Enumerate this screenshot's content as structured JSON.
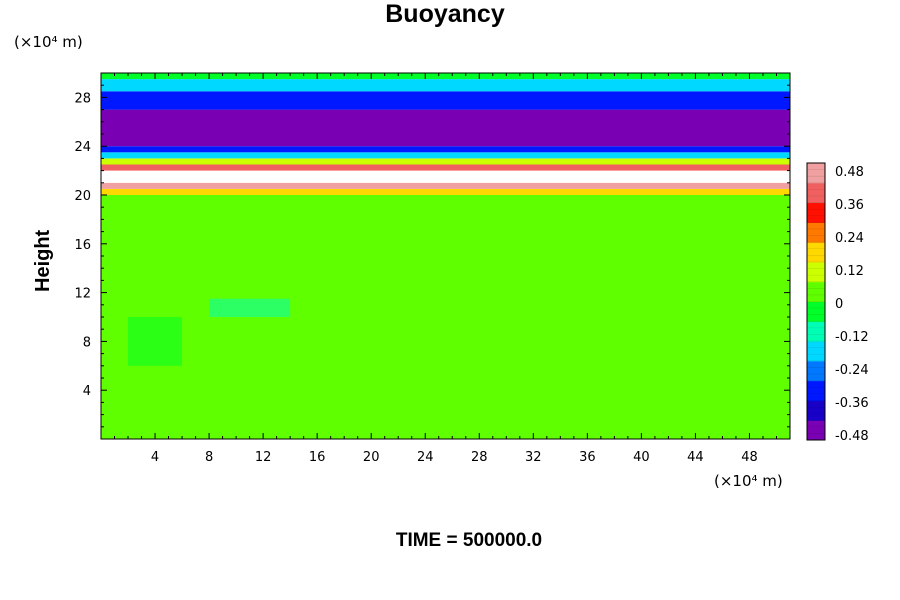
{
  "chart_data": {
    "type": "heatmap",
    "title": "Buoyancy",
    "ylabel": "Height",
    "y_unit": "(×10⁴ m)",
    "x_unit": "(×10⁴ m)",
    "x_unit_base": "(×10",
    "x_unit_exp": "4",
    "x_unit_tail": " m)",
    "xlim": [
      0,
      51
    ],
    "ylim": [
      0,
      30
    ],
    "x_ticks": [
      4,
      8,
      12,
      16,
      20,
      24,
      28,
      32,
      36,
      40,
      44,
      48
    ],
    "y_ticks": [
      4,
      8,
      12,
      16,
      20,
      24,
      28
    ],
    "colorbar": {
      "ticks": [
        "0.48",
        "0.36",
        "0.24",
        "0.12",
        "0",
        "-0.12",
        "-0.24",
        "-0.36",
        "-0.48"
      ],
      "range": [
        -0.48,
        0.48
      ],
      "colors": [
        "#7a00b4",
        "#1800c8",
        "#0018ff",
        "#0078ff",
        "#00d8ff",
        "#00ffb4",
        "#00ff28",
        "#60ff00",
        "#ccff00",
        "#ffd800",
        "#ff7800",
        "#ff1000",
        "#f06060",
        "#f0a0a0"
      ]
    },
    "bands": [
      {
        "y0": 0,
        "y1": 20.0,
        "value": 0.0
      },
      {
        "y0": 20.0,
        "y1": 20.5,
        "value": 0.2
      },
      {
        "y0": 20.5,
        "y1": 21.0,
        "value": 0.45
      },
      {
        "y0": 21.0,
        "y1": 22.0,
        "value": 0.6
      },
      {
        "y0": 22.0,
        "y1": 22.5,
        "value": 0.4
      },
      {
        "y0": 22.5,
        "y1": 23.0,
        "value": 0.1
      },
      {
        "y0": 23.0,
        "y1": 23.5,
        "value": -0.15
      },
      {
        "y0": 23.5,
        "y1": 24.0,
        "value": -0.3
      },
      {
        "y0": 24.0,
        "y1": 27.0,
        "value": -0.42
      },
      {
        "y0": 27.0,
        "y1": 28.5,
        "value": -0.3
      },
      {
        "y0": 28.5,
        "y1": 29.5,
        "value": -0.15
      },
      {
        "y0": 29.5,
        "y1": 30.0,
        "value": -0.05
      }
    ],
    "features": [
      {
        "x0": 0,
        "x1": 51,
        "y0": 10.6,
        "y1": 11.6,
        "value": 0.06
      },
      {
        "x0": 8,
        "x1": 14,
        "y0": 10.0,
        "y1": 11.5,
        "value": -0.1
      },
      {
        "x0": 2,
        "x1": 6,
        "y0": 6.0,
        "y1": 10.0,
        "value": -0.05
      }
    ]
  },
  "footer_text": "TIME = 500000.0"
}
